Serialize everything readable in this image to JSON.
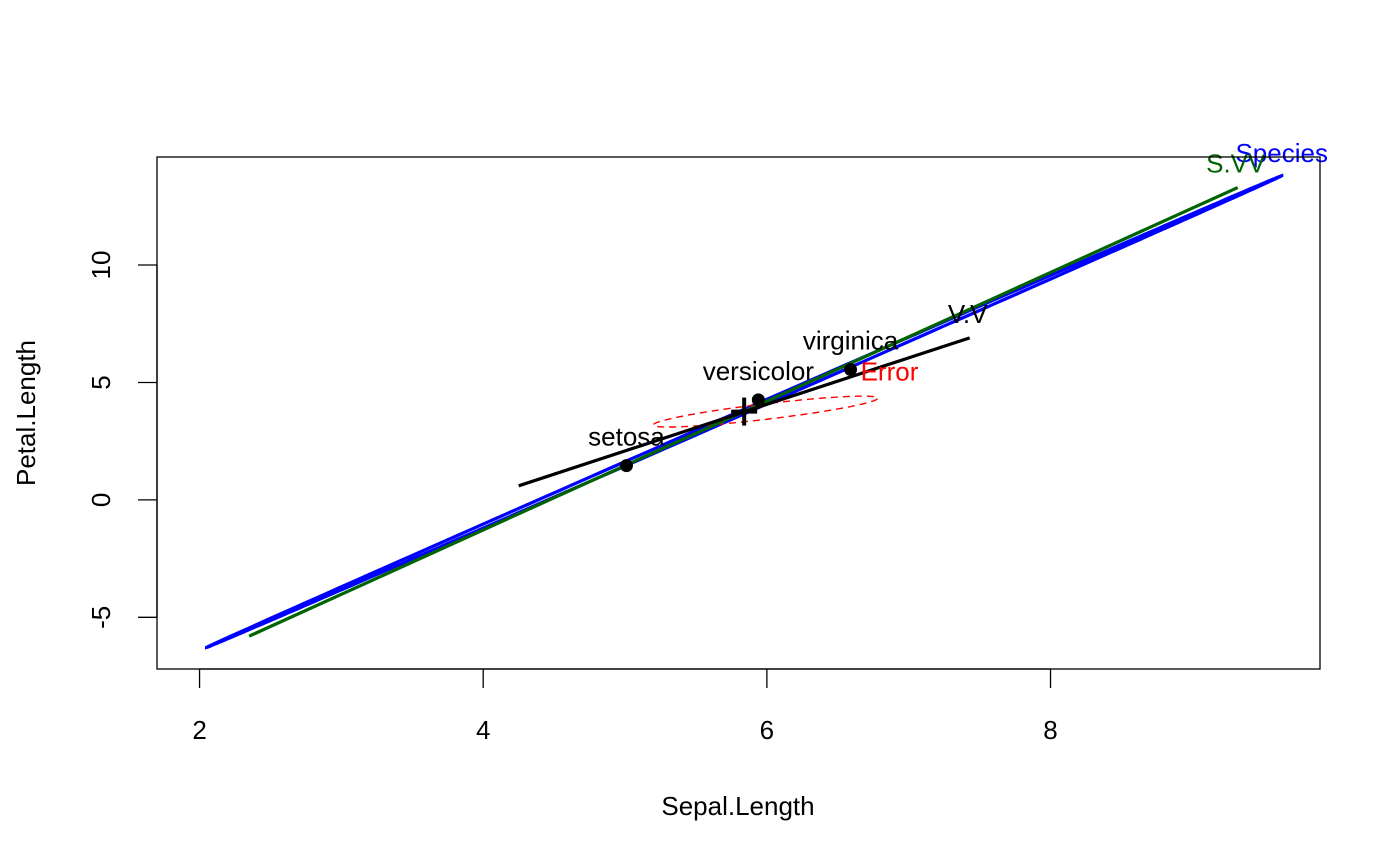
{
  "chart_data": {
    "type": "scatter",
    "xlabel": "Sepal.Length",
    "ylabel": "Petal.Length",
    "xlim": [
      1.7,
      9.9
    ],
    "ylim": [
      -7.2,
      14.6
    ],
    "x_ticks": [
      2,
      4,
      6,
      8
    ],
    "y_ticks": [
      -5,
      0,
      5,
      10
    ],
    "grid": false,
    "centroid": {
      "x": 5.84,
      "y": 3.76
    },
    "points": [
      {
        "label": "setosa",
        "x": 5.01,
        "y": 1.46
      },
      {
        "label": "versicolor",
        "x": 5.94,
        "y": 4.26
      },
      {
        "label": "virginica",
        "x": 6.59,
        "y": 5.55
      }
    ],
    "ellipses": [
      {
        "label": "Species",
        "color": "#0000ff",
        "line": "solid",
        "center": {
          "x": 5.84,
          "y": 3.76
        },
        "axis_end_a": {
          "x": 9.63,
          "y": 13.8
        },
        "axis_end_b": {
          "x": 5.79,
          "y": 3.53
        }
      },
      {
        "label": "Error",
        "color": "#ff0000",
        "line": "dashed",
        "center": {
          "x": 5.99,
          "y": 3.76
        },
        "axis_end_a": {
          "x": 6.78,
          "y": 4.31
        },
        "axis_end_b": {
          "x": 5.95,
          "y": 3.4
        }
      }
    ],
    "segments": [
      {
        "label": "S.VV",
        "color": "#006400",
        "from": {
          "x": 2.35,
          "y": -5.8
        },
        "to": {
          "x": 9.32,
          "y": 13.3
        }
      },
      {
        "label": "V.V",
        "color": "#000000",
        "from": {
          "x": 4.25,
          "y": 0.6
        },
        "to": {
          "x": 7.43,
          "y": 6.9
        }
      }
    ]
  }
}
